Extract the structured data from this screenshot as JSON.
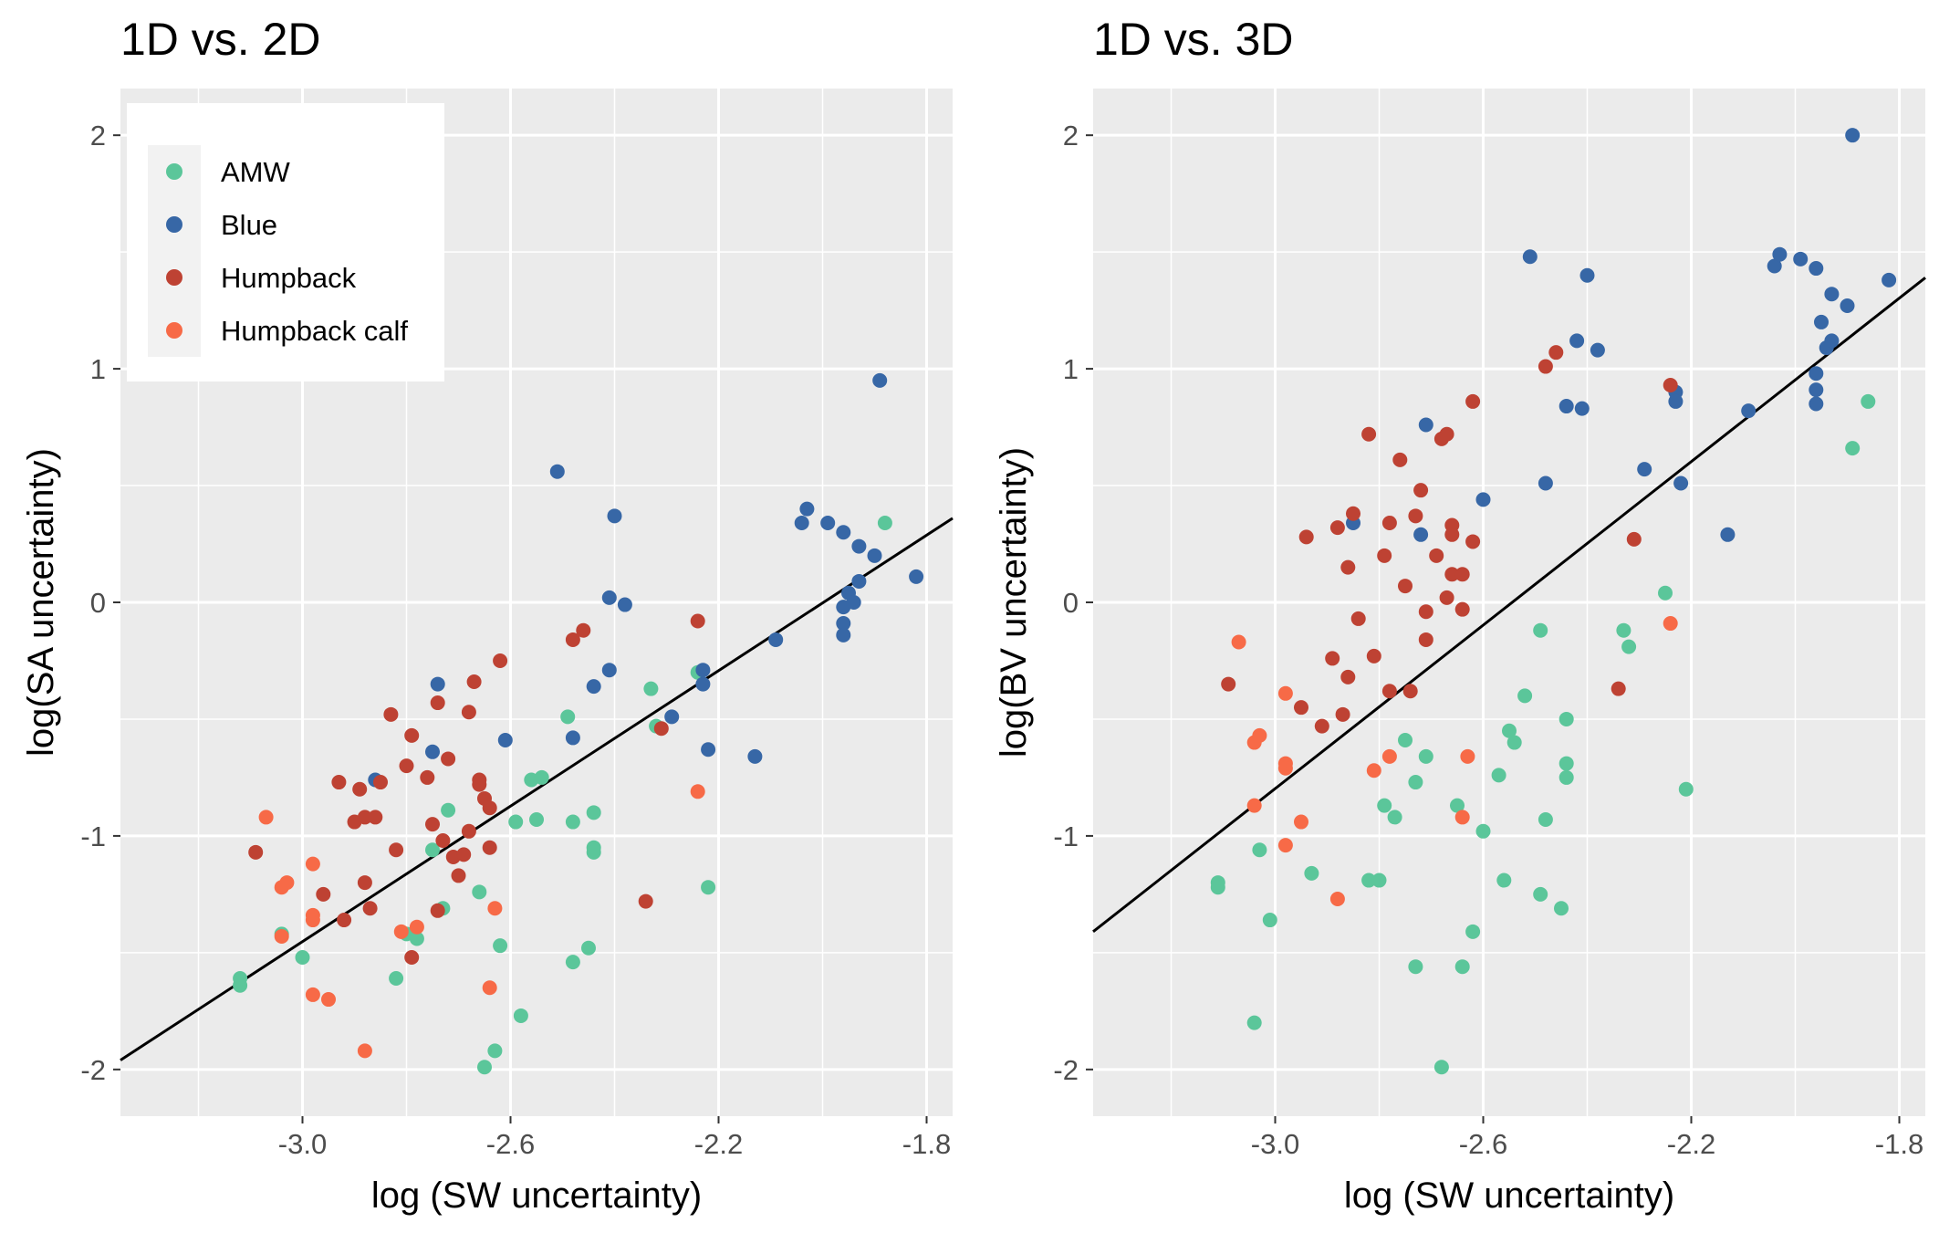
{
  "chart_data": [
    {
      "type": "scatter",
      "title": "1D vs. 2D",
      "xlabel": "log (SW uncertainty)",
      "ylabel": "log(SA uncertainty)",
      "xlim": [
        -3.35,
        -1.75
      ],
      "ylim": [
        -2.2,
        2.2
      ],
      "x_ticks": [
        -3.0,
        -2.6,
        -2.2,
        -1.8
      ],
      "x_tick_labels": [
        "-3.0",
        "-2.6",
        "-2.2",
        "-1.8"
      ],
      "y_ticks": [
        -2,
        -1,
        0,
        1,
        2
      ],
      "y_tick_labels": [
        "-2",
        "-1",
        "0",
        "1",
        "2"
      ],
      "grid": true,
      "legend_position": "top-left",
      "fit_line": {
        "x": [
          -3.35,
          -1.75
        ],
        "y": [
          -1.96,
          0.36
        ],
        "color": "#000000"
      },
      "series": [
        {
          "name": "AMW",
          "color": "#5BC69A",
          "points": [
            [
              -3.12,
              -1.61
            ],
            [
              -3.12,
              -1.64
            ],
            [
              -3.04,
              -1.42
            ],
            [
              -3.0,
              -1.52
            ],
            [
              -2.82,
              -1.61
            ],
            [
              -2.8,
              -1.42
            ],
            [
              -2.78,
              -1.44
            ],
            [
              -2.75,
              -1.06
            ],
            [
              -2.73,
              -1.31
            ],
            [
              -2.72,
              -0.89
            ],
            [
              -2.66,
              -1.24
            ],
            [
              -2.63,
              -1.92
            ],
            [
              -2.65,
              -1.99
            ],
            [
              -2.62,
              -1.47
            ],
            [
              -2.59,
              -0.94
            ],
            [
              -2.56,
              -0.76
            ],
            [
              -2.55,
              -0.93
            ],
            [
              -2.54,
              -0.75
            ],
            [
              -2.58,
              -1.77
            ],
            [
              -2.49,
              -0.49
            ],
            [
              -2.48,
              -0.94
            ],
            [
              -2.48,
              -1.54
            ],
            [
              -2.45,
              -1.48
            ],
            [
              -2.44,
              -0.9
            ],
            [
              -2.44,
              -1.05
            ],
            [
              -2.44,
              -1.07
            ],
            [
              -2.33,
              -0.37
            ],
            [
              -2.32,
              -0.53
            ],
            [
              -2.24,
              -0.3
            ],
            [
              -2.22,
              -1.22
            ],
            [
              -1.88,
              0.34
            ]
          ]
        },
        {
          "name": "Blue",
          "color": "#3767A6",
          "points": [
            [
              -2.86,
              -0.76
            ],
            [
              -2.75,
              -0.64
            ],
            [
              -2.74,
              -0.35
            ],
            [
              -2.61,
              -0.59
            ],
            [
              -2.51,
              0.56
            ],
            [
              -2.48,
              -0.58
            ],
            [
              -2.44,
              -0.36
            ],
            [
              -2.41,
              0.02
            ],
            [
              -2.41,
              -0.29
            ],
            [
              -2.4,
              0.37
            ],
            [
              -2.38,
              -0.01
            ],
            [
              -2.29,
              -0.49
            ],
            [
              -2.23,
              -0.29
            ],
            [
              -2.23,
              -0.35
            ],
            [
              -2.22,
              -0.63
            ],
            [
              -2.13,
              -0.66
            ],
            [
              -2.09,
              -0.16
            ],
            [
              -2.04,
              0.34
            ],
            [
              -2.03,
              0.4
            ],
            [
              -1.99,
              0.34
            ],
            [
              -1.96,
              0.3
            ],
            [
              -1.96,
              -0.02
            ],
            [
              -1.96,
              -0.09
            ],
            [
              -1.96,
              -0.14
            ],
            [
              -1.95,
              0.04
            ],
            [
              -1.94,
              0.0
            ],
            [
              -1.93,
              0.09
            ],
            [
              -1.93,
              0.24
            ],
            [
              -1.9,
              0.2
            ],
            [
              -1.89,
              0.95
            ],
            [
              -1.82,
              0.11
            ]
          ]
        },
        {
          "name": "Humpback",
          "color": "#BE4233",
          "points": [
            [
              -3.09,
              -1.07
            ],
            [
              -2.93,
              -0.77
            ],
            [
              -2.92,
              -1.36
            ],
            [
              -2.96,
              -1.25
            ],
            [
              -2.9,
              -0.94
            ],
            [
              -2.89,
              -0.8
            ],
            [
              -2.88,
              -0.92
            ],
            [
              -2.88,
              -1.2
            ],
            [
              -2.87,
              -1.31
            ],
            [
              -2.86,
              -0.92
            ],
            [
              -2.85,
              -0.77
            ],
            [
              -2.83,
              -0.48
            ],
            [
              -2.82,
              -1.06
            ],
            [
              -2.8,
              -0.7
            ],
            [
              -2.79,
              -0.57
            ],
            [
              -2.79,
              -1.52
            ],
            [
              -2.76,
              -0.75
            ],
            [
              -2.75,
              -0.95
            ],
            [
              -2.74,
              -0.43
            ],
            [
              -2.73,
              -1.02
            ],
            [
              -2.72,
              -0.67
            ],
            [
              -2.71,
              -1.09
            ],
            [
              -2.7,
              -1.17
            ],
            [
              -2.69,
              -1.08
            ],
            [
              -2.68,
              -0.98
            ],
            [
              -2.68,
              -0.47
            ],
            [
              -2.67,
              -0.34
            ],
            [
              -2.66,
              -0.76
            ],
            [
              -2.66,
              -0.78
            ],
            [
              -2.65,
              -0.84
            ],
            [
              -2.64,
              -0.88
            ],
            [
              -2.64,
              -1.05
            ],
            [
              -2.62,
              -0.25
            ],
            [
              -2.48,
              -0.16
            ],
            [
              -2.46,
              -0.12
            ],
            [
              -2.31,
              -0.54
            ],
            [
              -2.34,
              -1.28
            ],
            [
              -2.24,
              -0.08
            ],
            [
              -2.74,
              -1.32
            ]
          ]
        },
        {
          "name": "Humpback calf",
          "color": "#F76A47",
          "points": [
            [
              -3.07,
              -0.92
            ],
            [
              -3.04,
              -1.22
            ],
            [
              -3.03,
              -1.2
            ],
            [
              -3.04,
              -1.43
            ],
            [
              -2.98,
              -1.12
            ],
            [
              -2.98,
              -1.34
            ],
            [
              -2.98,
              -1.36
            ],
            [
              -2.98,
              -1.68
            ],
            [
              -2.95,
              -1.7
            ],
            [
              -2.88,
              -1.92
            ],
            [
              -2.81,
              -1.41
            ],
            [
              -2.78,
              -1.39
            ],
            [
              -2.63,
              -1.31
            ],
            [
              -2.64,
              -1.65
            ],
            [
              -2.24,
              -0.81
            ]
          ]
        }
      ]
    },
    {
      "type": "scatter",
      "title": "1D vs. 3D",
      "xlabel": "log (SW uncertainty)",
      "ylabel": "log(BV uncertainty)",
      "xlim": [
        -3.35,
        -1.75
      ],
      "ylim": [
        -2.2,
        2.2
      ],
      "x_ticks": [
        -3.0,
        -2.6,
        -2.2,
        -1.8
      ],
      "x_tick_labels": [
        "-3.0",
        "-2.6",
        "-2.2",
        "-1.8"
      ],
      "y_ticks": [
        -2,
        -1,
        0,
        1,
        2
      ],
      "y_tick_labels": [
        "-2",
        "-1",
        "0",
        "1",
        "2"
      ],
      "grid": true,
      "fit_line": {
        "x": [
          -3.35,
          -1.75
        ],
        "y": [
          -1.41,
          1.39
        ],
        "color": "#000000"
      },
      "series": [
        {
          "name": "AMW",
          "color": "#5BC69A",
          "points": [
            [
              -3.11,
              -1.2
            ],
            [
              -3.11,
              -1.22
            ],
            [
              -3.03,
              -1.06
            ],
            [
              -3.01,
              -1.36
            ],
            [
              -3.04,
              -1.8
            ],
            [
              -2.93,
              -1.16
            ],
            [
              -2.82,
              -1.19
            ],
            [
              -2.8,
              -1.19
            ],
            [
              -2.79,
              -0.87
            ],
            [
              -2.77,
              -0.92
            ],
            [
              -2.75,
              -0.59
            ],
            [
              -2.73,
              -0.77
            ],
            [
              -2.73,
              -1.56
            ],
            [
              -2.71,
              -0.66
            ],
            [
              -2.68,
              -1.99
            ],
            [
              -2.65,
              -0.87
            ],
            [
              -2.64,
              -1.56
            ],
            [
              -2.62,
              -1.41
            ],
            [
              -2.6,
              -0.98
            ],
            [
              -2.57,
              -0.74
            ],
            [
              -2.56,
              -1.19
            ],
            [
              -2.55,
              -0.55
            ],
            [
              -2.54,
              -0.6
            ],
            [
              -2.52,
              -0.4
            ],
            [
              -2.49,
              -0.12
            ],
            [
              -2.49,
              -1.25
            ],
            [
              -2.48,
              -0.93
            ],
            [
              -2.45,
              -1.31
            ],
            [
              -2.44,
              -0.5
            ],
            [
              -2.44,
              -0.69
            ],
            [
              -2.44,
              -0.75
            ],
            [
              -2.33,
              -0.12
            ],
            [
              -2.32,
              -0.19
            ],
            [
              -2.25,
              0.04
            ],
            [
              -2.21,
              -0.8
            ],
            [
              -1.89,
              0.66
            ],
            [
              -1.86,
              0.86
            ]
          ]
        },
        {
          "name": "Blue",
          "color": "#3767A6",
          "points": [
            [
              -2.85,
              0.34
            ],
            [
              -2.72,
              0.29
            ],
            [
              -2.71,
              0.76
            ],
            [
              -2.6,
              0.44
            ],
            [
              -2.51,
              1.48
            ],
            [
              -2.48,
              0.51
            ],
            [
              -2.44,
              0.84
            ],
            [
              -2.42,
              1.12
            ],
            [
              -2.41,
              0.83
            ],
            [
              -2.4,
              1.4
            ],
            [
              -2.38,
              1.08
            ],
            [
              -2.29,
              0.57
            ],
            [
              -2.23,
              0.9
            ],
            [
              -2.23,
              0.86
            ],
            [
              -2.22,
              0.51
            ],
            [
              -2.13,
              0.29
            ],
            [
              -2.09,
              0.82
            ],
            [
              -2.04,
              1.44
            ],
            [
              -2.03,
              1.49
            ],
            [
              -1.99,
              1.47
            ],
            [
              -1.96,
              1.43
            ],
            [
              -1.96,
              0.98
            ],
            [
              -1.96,
              0.91
            ],
            [
              -1.96,
              0.85
            ],
            [
              -1.95,
              1.2
            ],
            [
              -1.94,
              1.09
            ],
            [
              -1.93,
              1.12
            ],
            [
              -1.93,
              1.32
            ],
            [
              -1.9,
              1.27
            ],
            [
              -1.89,
              2.0
            ],
            [
              -1.82,
              1.38
            ]
          ]
        },
        {
          "name": "Humpback",
          "color": "#BE4233",
          "points": [
            [
              -3.09,
              -0.35
            ],
            [
              -2.94,
              0.28
            ],
            [
              -2.95,
              -0.45
            ],
            [
              -2.91,
              -0.53
            ],
            [
              -2.89,
              -0.24
            ],
            [
              -2.88,
              0.32
            ],
            [
              -2.87,
              -0.48
            ],
            [
              -2.86,
              0.15
            ],
            [
              -2.86,
              -0.32
            ],
            [
              -2.85,
              0.38
            ],
            [
              -2.84,
              -0.07
            ],
            [
              -2.82,
              0.72
            ],
            [
              -2.81,
              -0.23
            ],
            [
              -2.79,
              0.2
            ],
            [
              -2.78,
              0.34
            ],
            [
              -2.78,
              -0.38
            ],
            [
              -2.76,
              0.61
            ],
            [
              -2.75,
              0.07
            ],
            [
              -2.73,
              0.37
            ],
            [
              -2.72,
              0.48
            ],
            [
              -2.71,
              -0.16
            ],
            [
              -2.71,
              -0.04
            ],
            [
              -2.69,
              0.2
            ],
            [
              -2.68,
              0.7
            ],
            [
              -2.67,
              0.02
            ],
            [
              -2.67,
              0.72
            ],
            [
              -2.66,
              0.12
            ],
            [
              -2.66,
              0.33
            ],
            [
              -2.66,
              0.29
            ],
            [
              -2.64,
              -0.03
            ],
            [
              -2.64,
              0.12
            ],
            [
              -2.62,
              0.26
            ],
            [
              -2.62,
              0.86
            ],
            [
              -2.48,
              1.01
            ],
            [
              -2.46,
              1.07
            ],
            [
              -2.31,
              0.27
            ],
            [
              -2.34,
              -0.37
            ],
            [
              -2.24,
              0.93
            ],
            [
              -2.74,
              -0.38
            ]
          ]
        },
        {
          "name": "Humpback calf",
          "color": "#F76A47",
          "points": [
            [
              -3.07,
              -0.17
            ],
            [
              -3.04,
              -0.6
            ],
            [
              -3.03,
              -0.57
            ],
            [
              -3.04,
              -0.87
            ],
            [
              -2.98,
              -0.39
            ],
            [
              -2.98,
              -0.69
            ],
            [
              -2.98,
              -0.71
            ],
            [
              -2.98,
              -1.04
            ],
            [
              -2.95,
              -0.94
            ],
            [
              -2.88,
              -1.27
            ],
            [
              -2.81,
              -0.72
            ],
            [
              -2.78,
              -0.66
            ],
            [
              -2.63,
              -0.66
            ],
            [
              -2.64,
              -0.92
            ],
            [
              -2.24,
              -0.09
            ]
          ]
        }
      ]
    }
  ]
}
